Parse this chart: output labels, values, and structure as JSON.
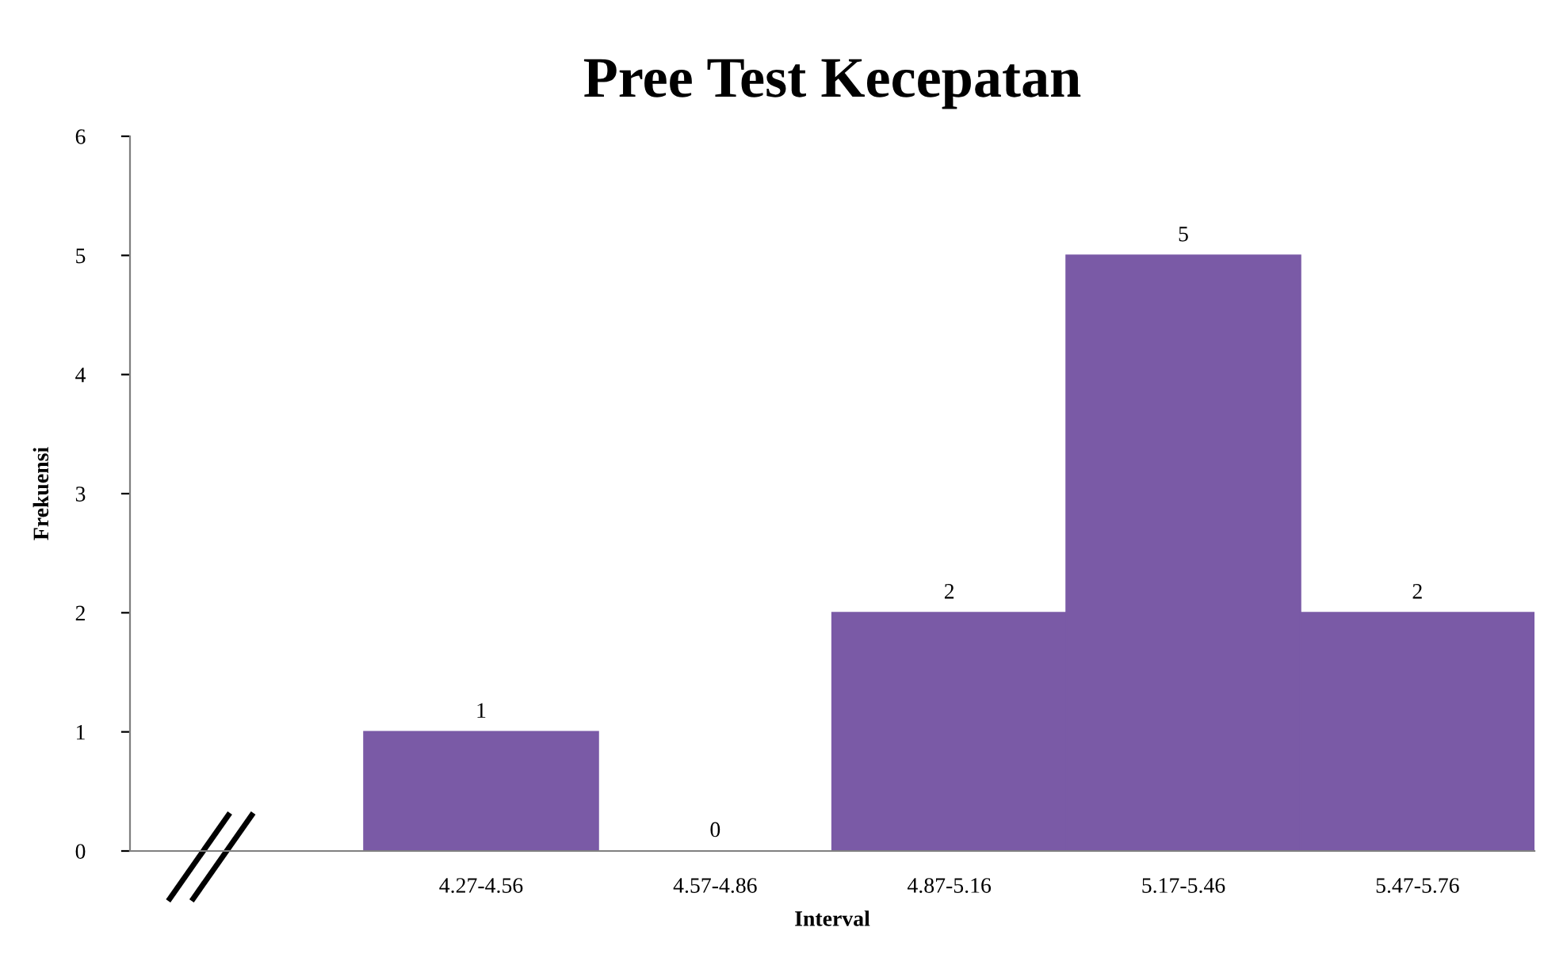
{
  "chart_data": {
    "type": "bar",
    "title": "Pree Test Kecepatan",
    "xlabel": "Interval",
    "ylabel": "Frekuensi",
    "categories": [
      null,
      "4.27-4.56",
      "4.57-4.86",
      "4.87-5.16",
      "5.17-5.46",
      "5.47-5.76"
    ],
    "values": [
      null,
      1,
      0,
      2,
      5,
      2
    ],
    "color": "#7a5aa6",
    "ylim": [
      0,
      6
    ],
    "yticks": [
      0,
      1,
      2,
      3,
      4,
      5,
      6
    ],
    "grid": false,
    "data_labels": true
  }
}
